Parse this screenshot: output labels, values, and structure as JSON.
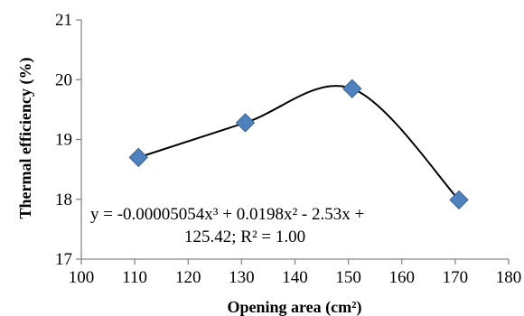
{
  "chart_data": {
    "type": "scatter",
    "xlabel": "Opening area  (cm²)",
    "ylabel": "Thermal efficiency (%)",
    "xlim": [
      100,
      180
    ],
    "ylim": [
      17,
      21
    ],
    "x_ticks": [
      "100",
      "110",
      "120",
      "130",
      "140",
      "150",
      "160",
      "170",
      "180"
    ],
    "y_ticks": [
      "17",
      "18",
      "19",
      "20",
      "21"
    ],
    "grid": false,
    "legend": "none",
    "series": [
      {
        "marker": "diamond",
        "color": "#4F81BD",
        "points": [
          {
            "x": 110.7,
            "y": 18.7
          },
          {
            "x": 130.7,
            "y": 19.28
          },
          {
            "x": 150.7,
            "y": 19.85
          },
          {
            "x": 170.7,
            "y": 17.99
          }
        ]
      }
    ],
    "trendline": {
      "type": "polynomial",
      "order": 3,
      "color": "#000000",
      "coefficients": [
        -5.054e-05,
        0.0198,
        -2.53,
        125.42
      ],
      "x_range": [
        110.7,
        170.7
      ],
      "equation_line1": "y = -0.00005054x³ + 0.0198x² - 2.53x +",
      "equation_line2": "125.42;    R² = 1.00"
    }
  }
}
